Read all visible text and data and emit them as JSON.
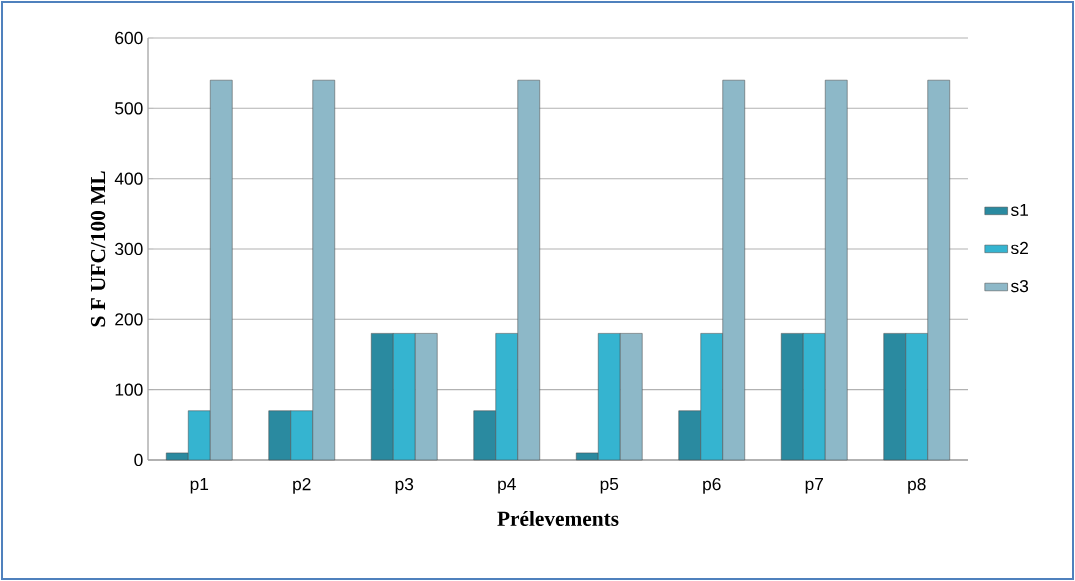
{
  "chart_data": {
    "type": "bar",
    "xlabel": "Prélevements",
    "ylabel": "S F UFC/100 ML",
    "categories": [
      "p1",
      "p2",
      "p3",
      "p4",
      "p5",
      "p6",
      "p7",
      "p8"
    ],
    "series": [
      {
        "name": "s1",
        "color": "#2a8aa0",
        "values": [
          10,
          70,
          180,
          70,
          10,
          70,
          180,
          180
        ]
      },
      {
        "name": "s2",
        "color": "#35b4d0",
        "values": [
          70,
          70,
          180,
          180,
          180,
          180,
          180,
          180
        ]
      },
      {
        "name": "s3",
        "color": "#8db8c8",
        "values": [
          540,
          540,
          180,
          540,
          180,
          540,
          540,
          540
        ]
      }
    ],
    "ylim": [
      0,
      600
    ],
    "yticks": [
      0,
      100,
      200,
      300,
      400,
      500,
      600
    ],
    "grid": "y",
    "legend": "right"
  }
}
